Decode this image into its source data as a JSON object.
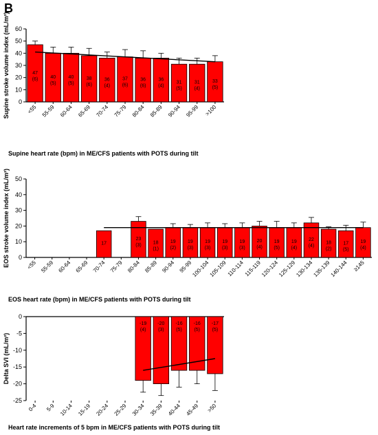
{
  "panel_label": "B",
  "colors": {
    "bar": "#ff0000",
    "bar_stroke": "#000000",
    "axis": "#000000"
  },
  "chart_data": [
    {
      "type": "bar",
      "ylabel": "Supine stroke volume index (mL/m²)",
      "xlabel": "Supine heart rate (bpm) in ME/CFS patients with POTS during tilt",
      "ylim": [
        0,
        60
      ],
      "yticks": [
        0,
        10,
        20,
        30,
        40,
        50,
        60
      ],
      "categories": [
        "<55",
        "55-59",
        "60-64",
        "65-69",
        "70-74",
        "75-79",
        "80-84",
        "85-89",
        "90-94",
        "95-99",
        ">100"
      ],
      "values": [
        47,
        40,
        40,
        38,
        36,
        37,
        36,
        36,
        31,
        31,
        33
      ],
      "errors": [
        3,
        5,
        5,
        6,
        5,
        6,
        6,
        4,
        5,
        5,
        5
      ],
      "n": [
        "(6)",
        "(5)",
        "(5)",
        "(6)",
        "(4)",
        "(6)",
        "(6)",
        "(4)",
        "(5)",
        "(4)",
        "(5)"
      ],
      "trend": [
        41,
        33
      ]
    },
    {
      "type": "bar",
      "ylabel": "EOS stroke volume index (mL/m²)",
      "xlabel": "EOS heart rate (bpm) in ME/CFS patients with POTS during tilt",
      "ylim": [
        0,
        50
      ],
      "yticks": [
        0,
        10,
        20,
        30,
        40,
        50
      ],
      "categories": [
        "<55",
        "55-59",
        "60-64",
        "65-69",
        "70-74",
        "75-79",
        "80-84",
        "85-89",
        "90-94",
        "95-99",
        "100-104",
        "105-109",
        "110-114",
        "115-119",
        "120-124",
        "125-129",
        "130-134",
        "135-139",
        "140-144",
        "≥145"
      ],
      "values": [
        null,
        null,
        null,
        null,
        17,
        null,
        23,
        18,
        19,
        19,
        19,
        19,
        19,
        20,
        19,
        19,
        22,
        18,
        17,
        19
      ],
      "errors": [
        null,
        null,
        null,
        null,
        0,
        null,
        3,
        0,
        2.5,
        2,
        3,
        2.5,
        3,
        3,
        4,
        3,
        3.5,
        1.5,
        3.5,
        3.5
      ],
      "n": [
        "",
        "",
        "",
        "",
        "",
        "",
        " (3)",
        "(1)",
        "(2)",
        "(3)",
        "(3)",
        "(3)",
        "(3)",
        "(4)",
        "(5)",
        "(4)",
        "(4)",
        "(2)",
        "(5)",
        "(4)"
      ],
      "trend": [
        19,
        19
      ],
      "trend_start_index": 4
    },
    {
      "type": "bar",
      "ylabel": "Delta SVI (mL/m²)",
      "xlabel": "Heart rate increments of 5 bpm in ME/CFS patients with POTS during tilt",
      "ylim": [
        -25,
        0
      ],
      "yticks": [
        0,
        -5,
        -10,
        -15,
        -20,
        -25
      ],
      "categories": [
        "0-4",
        "5-9",
        "10-14",
        "15-19",
        "20-24",
        "25-29",
        "30-34",
        "35-39",
        "40-44",
        "45-49",
        ">50"
      ],
      "values": [
        null,
        null,
        null,
        null,
        null,
        null,
        -19,
        -20,
        -16,
        -16,
        -17
      ],
      "errors": [
        null,
        null,
        null,
        null,
        null,
        null,
        3.5,
        3.5,
        5,
        4,
        5
      ],
      "n": [
        "",
        "",
        "",
        "",
        "",
        "",
        "(4)",
        "(3)",
        "(5)",
        "(5)",
        "(5)"
      ],
      "trend": [
        -16,
        -12.5
      ],
      "trend_start_index": 6
    }
  ]
}
